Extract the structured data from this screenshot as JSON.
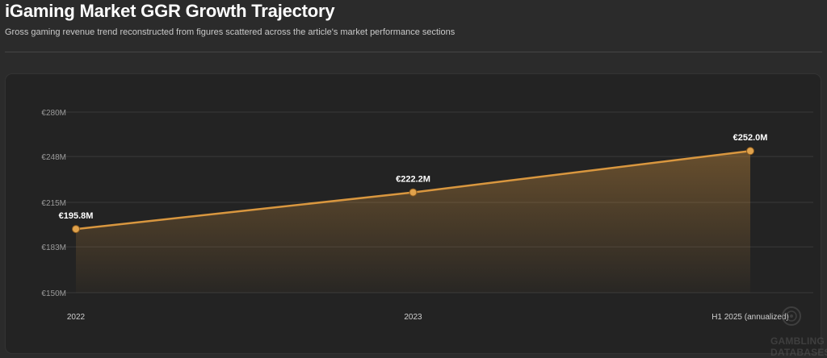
{
  "header": {
    "title": "iGaming Market GGR Growth Trajectory",
    "subtitle": "Gross gaming revenue trend reconstructed from figures scattered across the article's market performance sections"
  },
  "chart_data": {
    "type": "area",
    "categories": [
      "2022",
      "2023",
      "H1 2025 (annualized)"
    ],
    "series": [
      {
        "values": [
          195.8,
          222.2,
          252.0
        ],
        "data_labels": [
          "€195.8M",
          "€222.2M",
          "€252.0M"
        ]
      }
    ],
    "y_ticks": [
      150,
      183,
      215,
      248,
      280
    ],
    "y_tick_labels": [
      "€150M",
      "€183M",
      "€215M",
      "€248M",
      "€280M"
    ],
    "ylim": [
      150,
      280
    ],
    "unit": "€M",
    "grid": true,
    "legend": "none",
    "colors": {
      "line": "#d9973f",
      "marker_fill": "#e0a24c",
      "marker_stroke": "#8a5a1e",
      "grid": "#3a3a3a",
      "tick_label": "#9a9a9a",
      "category_label": "#cfcfcf",
      "data_label": "#ffffff"
    }
  },
  "watermark": {
    "lines": [
      "GAMBLING",
      "DATABASES"
    ],
    "icon": "roulette-badge-icon"
  }
}
